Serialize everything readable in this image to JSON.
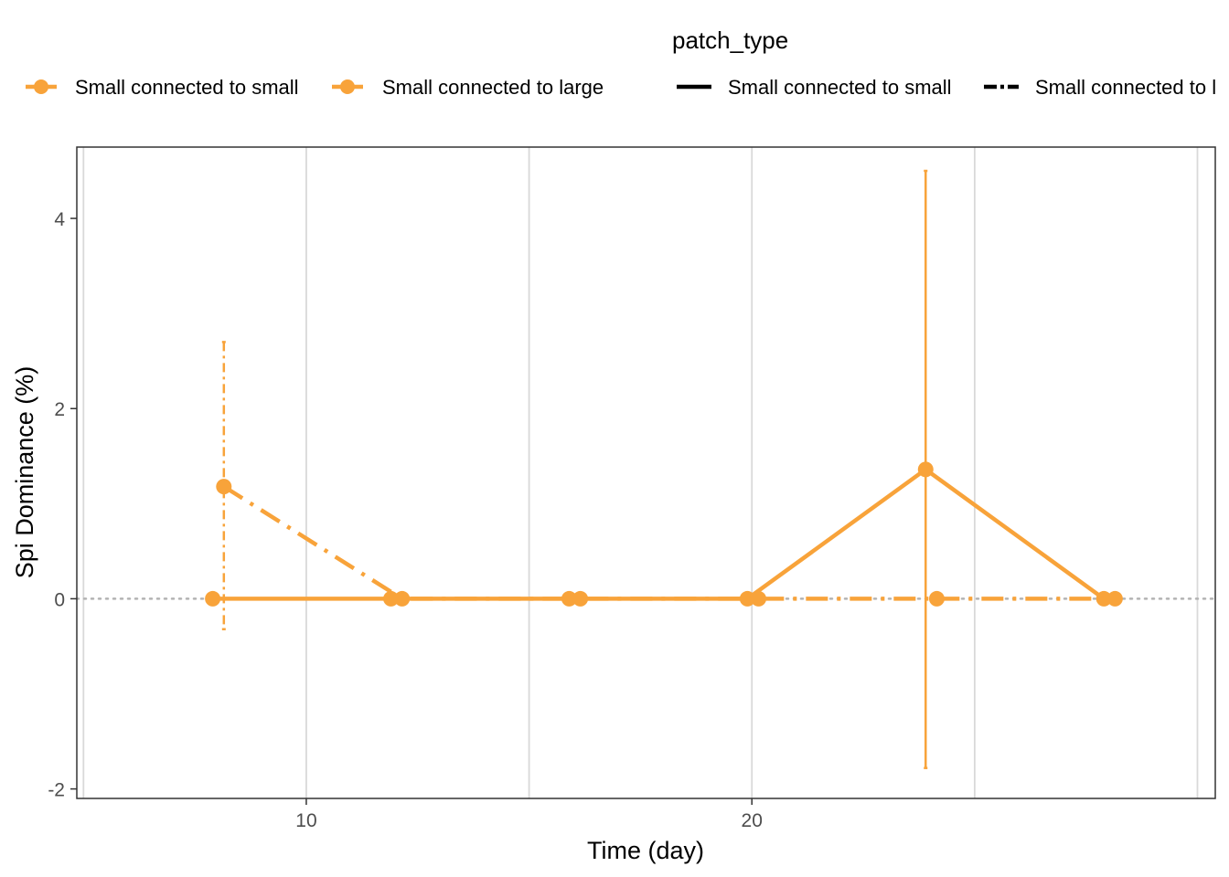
{
  "chart_data": {
    "type": "line",
    "xlabel": "Time (day)",
    "ylabel": "Spi Dominance (%)",
    "xlim": [
      4.85,
      30.4
    ],
    "ylim": [
      -2.1,
      4.75
    ],
    "x_ticks": [
      10,
      20
    ],
    "y_ticks": [
      -2,
      0,
      2,
      4
    ],
    "grid": {
      "major_x": true,
      "minor_x": true,
      "horizontal": false
    },
    "reference_line": {
      "y": 0,
      "style": "dotted"
    },
    "legend": {
      "position": "top",
      "title": "patch_type",
      "color_entries": [
        "Small connected to small",
        "Small connected to large"
      ],
      "linetype_entries": [
        "Small connected to small",
        "Small connected to l"
      ]
    },
    "colors": {
      "series": "#F8A33A",
      "axis": "#333333",
      "grid": "#d9d9d9",
      "ref": "#b3b3b3"
    },
    "series": [
      {
        "name": "Small connected to small",
        "linetype": "solid",
        "x": [
          7.9,
          11.9,
          15.9,
          19.9,
          23.9,
          27.9
        ],
        "y": [
          0,
          0,
          0,
          0,
          1.36,
          0
        ],
        "error_low": [
          null,
          null,
          null,
          null,
          -1.78,
          null
        ],
        "error_high": [
          null,
          null,
          null,
          null,
          4.5,
          null
        ]
      },
      {
        "name": "Small connected to large",
        "linetype": "dashdot",
        "x": [
          8.15,
          12.15,
          16.15,
          20.15,
          24.15,
          28.15
        ],
        "y": [
          1.18,
          0,
          0,
          0,
          0,
          0
        ],
        "error_low": [
          -0.32,
          null,
          null,
          null,
          null,
          null
        ],
        "error_high": [
          2.7,
          null,
          null,
          null,
          null,
          null
        ]
      }
    ]
  }
}
